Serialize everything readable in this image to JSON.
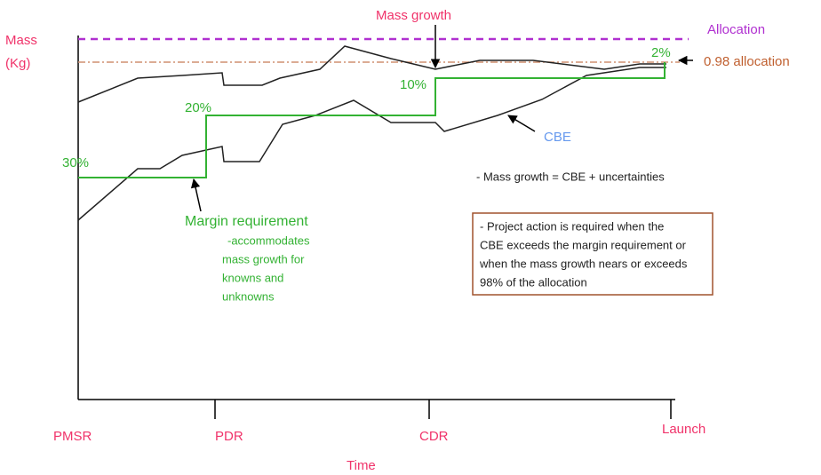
{
  "labels": {
    "mass": "Mass",
    "kg": "(Kg)",
    "mass_growth": "Mass growth",
    "allocation": "Allocation",
    "allocation_98": "0.98 allocation",
    "cbe": "CBE",
    "equation": "- Mass growth = CBE + uncertainties",
    "time": "Time"
  },
  "margins": [
    "30%",
    "20%",
    "10%",
    "2%"
  ],
  "milestones": [
    "PMSR",
    "PDR",
    "CDR",
    "Launch"
  ],
  "margin_note": {
    "title": "Margin requirement",
    "lines": [
      "-accommodates",
      "mass growth for",
      "knowns and",
      "unknowns"
    ]
  },
  "action_box": {
    "lines": [
      "- Project action is required when the",
      "CBE exceeds the margin requirement or",
      "when the mass growth nears or exceeds",
      "98% of the allocation"
    ]
  }
}
